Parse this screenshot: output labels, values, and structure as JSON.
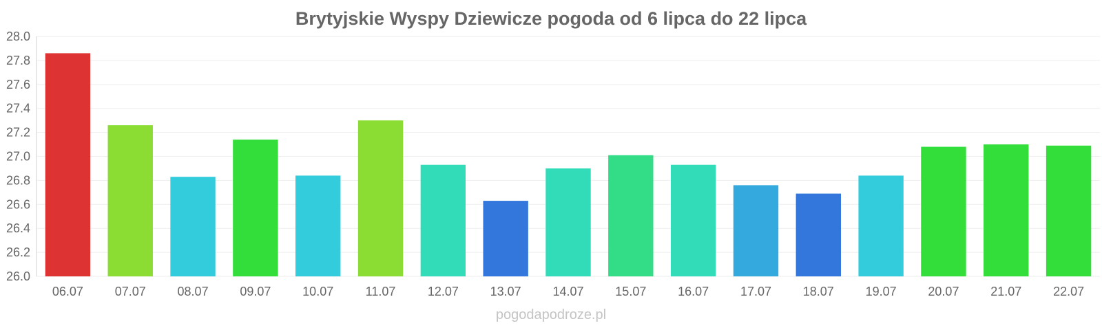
{
  "chart_data": {
    "type": "bar",
    "title": "Brytyjskie Wyspy Dziewicze pogoda od 6 lipca do 22 lipca",
    "xlabel": "",
    "ylabel": "",
    "ylim": [
      26.0,
      28.0
    ],
    "yticks": [
      "26.0",
      "26.2",
      "26.4",
      "26.6",
      "26.8",
      "27.0",
      "27.2",
      "27.4",
      "27.6",
      "27.8",
      "28.0"
    ],
    "grid": true,
    "legend": "none",
    "categories": [
      "06.07",
      "07.07",
      "08.07",
      "09.07",
      "10.07",
      "11.07",
      "12.07",
      "13.07",
      "14.07",
      "15.07",
      "16.07",
      "17.07",
      "18.07",
      "19.07",
      "20.07",
      "21.07",
      "22.07"
    ],
    "values": [
      27.86,
      27.26,
      26.83,
      27.14,
      26.84,
      27.3,
      26.93,
      26.63,
      26.9,
      27.01,
      26.93,
      26.76,
      26.69,
      26.84,
      27.08,
      27.1,
      27.09
    ],
    "colors": [
      "#dd3333",
      "#8cdd33",
      "#33ccdd",
      "#33dd3a",
      "#33ccdd",
      "#8cdd33",
      "#33dcb9",
      "#3377dd",
      "#33dcb9",
      "#33dd88",
      "#33dcb9",
      "#33a9dd",
      "#3377dd",
      "#33ccdd",
      "#33dd3a",
      "#33dd3a",
      "#33dd3a"
    ]
  },
  "watermark": "pogodapodroze.pl"
}
